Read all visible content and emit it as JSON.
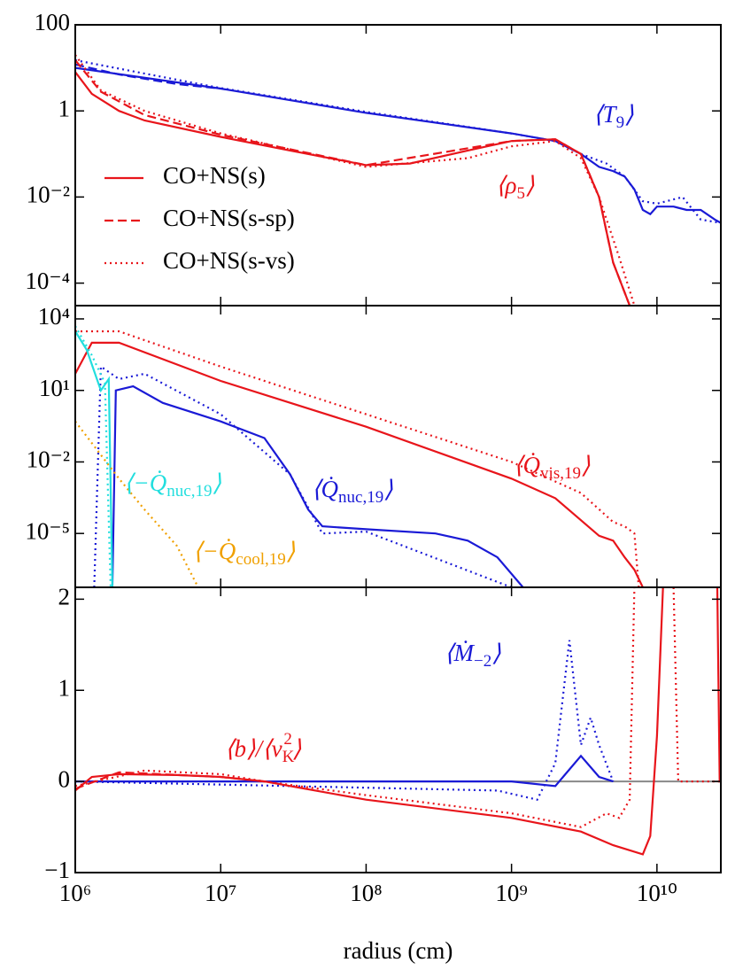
{
  "chart_data": [
    {
      "type": "line",
      "xscale": "log",
      "yscale": "log",
      "xlim": [
        1000000.0,
        27500000000.0
      ],
      "xticks": [
        1000000.0,
        10000000.0,
        100000000.0,
        1000000000.0,
        10000000000.0
      ],
      "ylim": [
        3e-05,
        100
      ],
      "yticks": [
        100,
        1,
        {
          "value": 0.01,
          "label": "10⁻²"
        },
        {
          "value": 0.0001,
          "label": "10⁻⁴"
        }
      ],
      "legend": [
        {
          "name": "CO+NS(s)",
          "color": "#e8151b",
          "linestyle": "solid"
        },
        {
          "name": "CO+NS(s-sp)",
          "color": "#e8151b",
          "linestyle": "dashed"
        },
        {
          "name": "CO+NS(s-vs)",
          "color": "#e8151b",
          "linestyle": "dotted"
        }
      ],
      "annotations": [
        {
          "color": "#1a1ad6",
          "parts": [
            {
              "text": "⟨T"
            },
            {
              "text": "9",
              "shift": "sub"
            },
            {
              "text": "⟩"
            }
          ]
        },
        {
          "color": "#e8151b",
          "parts": [
            {
              "text": "⟨ρ"
            },
            {
              "text": "5",
              "shift": "sub"
            },
            {
              "text": "⟩"
            }
          ]
        }
      ],
      "series": [
        {
          "color": "#1a1ad6",
          "linestyle": "solid",
          "x": [
            1000000.0,
            10000000.0,
            100000000.0,
            1000000000.0,
            2000000000.0,
            3000000000.0,
            4000000000.0,
            5000000000.0,
            6000000000.0,
            7000000000.0,
            8000000000.0,
            9000000000.0,
            10000000000.0,
            13000000000.0,
            16000000000.0,
            20000000000.0,
            25000000000.0,
            27500000000.0
          ],
          "values": [
            10,
            3.3,
            0.9,
            0.3,
            0.2,
            0.1,
            0.05,
            0.04,
            0.03,
            0.015,
            0.005,
            0.004,
            0.006,
            0.006,
            0.005,
            0.005,
            0.003,
            0.0025
          ]
        },
        {
          "color": "#1a1ad6",
          "linestyle": "dashed",
          "x": [
            1000000.0,
            2000000.0,
            5000000.0,
            10000000.0
          ],
          "values": [
            12,
            7,
            4.2,
            3.3
          ]
        },
        {
          "color": "#1a1ad6",
          "linestyle": "dotted",
          "x": [
            1000000.0,
            10000000.0,
            100000000.0,
            1000000000.0,
            2000000000.0,
            3000000000.0,
            4500000000.0,
            6000000000.0,
            8000000000.0,
            10000000000.0,
            15000000000.0,
            20000000000.0,
            27500000000.0
          ],
          "values": [
            15,
            3.4,
            0.95,
            0.3,
            0.2,
            0.1,
            0.06,
            0.03,
            0.008,
            0.007,
            0.01,
            0.003,
            0.0025
          ]
        },
        {
          "color": "#e8151b",
          "linestyle": "solid",
          "x": [
            1000000.0,
            1300000.0,
            2000000.0,
            3000000.0,
            10000000.0,
            30000000.0,
            100000000.0,
            200000000.0,
            500000000.0,
            1000000000.0,
            2000000000.0,
            3000000000.0,
            4000000000.0,
            5000000000.0,
            6500000000.0
          ],
          "values": [
            8,
            2.5,
            1,
            0.6,
            0.25,
            0.12,
            0.055,
            0.06,
            0.12,
            0.2,
            0.22,
            0.1,
            0.01,
            0.0003,
            3e-05
          ]
        },
        {
          "color": "#e8151b",
          "linestyle": "dashed",
          "x": [
            1000000.0,
            1500000.0,
            3000000.0,
            10000000.0,
            100000000.0,
            1000000000.0,
            2000000000.0,
            3000000000.0,
            4000000000.0,
            5000000000.0,
            6500000000.0
          ],
          "values": [
            15,
            2.8,
            0.8,
            0.28,
            0.055,
            0.2,
            0.22,
            0.1,
            0.01,
            0.0003,
            3e-05
          ]
        },
        {
          "color": "#e8151b",
          "linestyle": "dotted",
          "x": [
            1000000.0,
            1500000.0,
            3000000.0,
            10000000.0,
            100000000.0,
            500000000.0,
            1000000000.0,
            2000000000.0,
            3000000000.0,
            4000000000.0,
            5500000000.0,
            7000000000.0
          ],
          "values": [
            20,
            3,
            1,
            0.3,
            0.05,
            0.08,
            0.15,
            0.2,
            0.08,
            0.01,
            0.0004,
            3e-05
          ]
        }
      ]
    },
    {
      "type": "line",
      "xscale": "log",
      "yscale": "log",
      "xlim": [
        1000000.0,
        27500000000.0
      ],
      "xticks": [
        1000000.0,
        10000000.0,
        100000000.0,
        1000000000.0,
        10000000000.0
      ],
      "ylim": [
        5.5e-08,
        36000
      ],
      "yticks": [
        {
          "value": 10000,
          "label": "10⁴"
        },
        {
          "value": 10,
          "label": "10¹"
        },
        {
          "value": 0.01,
          "label": "10⁻²"
        },
        {
          "value": 1e-05,
          "label": "10⁻⁵"
        }
      ],
      "annotations": [
        {
          "color": "#22dede",
          "parts": [
            {
              "text": "⟨−Q̇"
            },
            {
              "text": "nuc,19",
              "shift": "sub"
            },
            {
              "text": "⟩"
            }
          ]
        },
        {
          "color": "#1a1ad6",
          "parts": [
            {
              "text": "⟨Q̇"
            },
            {
              "text": "nuc,19",
              "shift": "sub"
            },
            {
              "text": "⟩"
            }
          ]
        },
        {
          "color": "#e8151b",
          "parts": [
            {
              "text": "⟨Q̇"
            },
            {
              "text": "vis,19",
              "shift": "sub"
            },
            {
              "text": "⟩"
            }
          ]
        },
        {
          "color": "#f0a000",
          "parts": [
            {
              "text": "⟨−Q̇"
            },
            {
              "text": "cool,19",
              "shift": "sub"
            },
            {
              "text": "⟩"
            }
          ]
        }
      ],
      "series": [
        {
          "color": "#e8151b",
          "linestyle": "solid",
          "x": [
            1000000.0,
            1300000.0,
            2000000.0,
            10000000.0,
            100000000.0,
            1000000000.0,
            2000000000.0,
            4000000000.0,
            5000000000.0,
            6000000000.0,
            7000000000.0,
            8000000000.0
          ],
          "values": [
            50,
            1000,
            1000,
            25,
            0.3,
            0.002,
            0.0003,
            8e-06,
            5e-06,
            1e-06,
            3e-07,
            5.5e-08
          ]
        },
        {
          "color": "#e8151b",
          "linestyle": "dotted",
          "x": [
            1000000.0,
            2000000.0,
            10000000.0,
            100000000.0,
            1000000000.0,
            3000000000.0,
            5000000000.0,
            6000000000.0,
            7000000000.0,
            7500000000.0
          ],
          "values": [
            3000,
            3000,
            100,
            1,
            0.01,
            0.0005,
            3e-05,
            2e-05,
            1e-05,
            5.5e-08
          ]
        },
        {
          "color": "#1a1ad6",
          "linestyle": "solid",
          "x": [
            1800000.0,
            1900000.0,
            2500000.0,
            4000000.0,
            10000000.0,
            20000000.0,
            30000000.0,
            40000000.0,
            50000000.0,
            100000000.0,
            300000000.0,
            500000000.0,
            800000000.0,
            1200000000.0
          ],
          "values": [
            5.5e-08,
            10,
            15,
            3,
            0.5,
            0.1,
            0.003,
            0.0001,
            2e-05,
            1.5e-05,
            1e-05,
            5e-06,
            1e-06,
            5.5e-08
          ]
        },
        {
          "color": "#1a1ad6",
          "linestyle": "dotted",
          "x": [
            1350000.0,
            1500000.0,
            2000000.0,
            3000000.0,
            10000000.0,
            30000000.0,
            50000000.0,
            100000000.0,
            1000000000.0
          ],
          "values": [
            5.5e-08,
            100,
            30,
            50,
            1,
            0.003,
            1e-05,
            1.2e-05,
            5.5e-08
          ]
        },
        {
          "color": "#22dede",
          "linestyle": "solid",
          "x": [
            1000000.0,
            1200000.0,
            1500000.0,
            1700000.0,
            1800000.0
          ],
          "values": [
            3000,
            500,
            10,
            30,
            5.5e-08
          ]
        },
        {
          "color": "#22dede",
          "linestyle": "dotted",
          "x": [
            1000000.0,
            1300000.0,
            1600000.0,
            1750000.0
          ],
          "values": [
            5000,
            300,
            20,
            5.5e-08
          ]
        },
        {
          "color": "#f0a000",
          "linestyle": "dotted",
          "x": [
            1000000.0,
            2000000.0,
            3000000.0,
            5000000.0,
            7000000.0
          ],
          "values": [
            0.5,
            0.002,
            0.0001,
            3e-06,
            5.5e-08
          ]
        }
      ]
    },
    {
      "type": "line",
      "xscale": "log",
      "xlim": [
        1000000.0,
        27500000000.0
      ],
      "xticks": [
        {
          "value": 1000000.0,
          "label": "10⁶"
        },
        {
          "value": 10000000.0,
          "label": "10⁷"
        },
        {
          "value": 100000000.0,
          "label": "10⁸"
        },
        {
          "value": 1000000000.0,
          "label": "10⁹"
        },
        {
          "value": 10000000000.0,
          "label": "10¹⁰"
        }
      ],
      "xlabel": "radius (cm)",
      "ylim": [
        -1,
        2.13
      ],
      "yticks": [
        2,
        1,
        0,
        {
          "value": -1,
          "label": "−1"
        }
      ],
      "reference_line": {
        "value": 0,
        "color": "#888888"
      },
      "annotations": [
        {
          "color": "#1a1ad6",
          "parts": [
            {
              "text": "⟨Ṁ"
            },
            {
              "text": "−2",
              "shift": "sub"
            },
            {
              "text": "⟩"
            }
          ]
        },
        {
          "color": "#e8151b",
          "parts": [
            {
              "text": "⟨b⟩/⟨v"
            },
            {
              "text": "K",
              "shift": "sub"
            },
            {
              "text": "2",
              "shift": "sup"
            },
            {
              "text": "⟩"
            }
          ]
        }
      ],
      "series": [
        {
          "color": "#1a1ad6",
          "linestyle": "solid",
          "x": [
            1000000.0,
            1000000000.0,
            2000000000.0,
            3000000000.0,
            4000000000.0,
            5000000000.0
          ],
          "values": [
            0,
            0,
            -0.05,
            0.28,
            0.05,
            0
          ]
        },
        {
          "color": "#1a1ad6",
          "linestyle": "dotted",
          "x": [
            1000000.0,
            800000000.0,
            1500000000.0,
            2000000000.0,
            2500000000.0,
            3000000000.0,
            3500000000.0,
            4000000000.0,
            5000000000.0
          ],
          "values": [
            0,
            -0.1,
            -0.2,
            0.2,
            1.55,
            0.4,
            0.7,
            0.4,
            0
          ]
        },
        {
          "color": "#e8151b",
          "linestyle": "solid",
          "x": [
            1000000.0,
            1300000.0,
            2000000.0,
            5000000.0,
            10000000.0,
            20000000.0,
            100000000.0,
            1000000000.0,
            3000000000.0,
            5000000000.0,
            8000000000.0,
            9000000000.0,
            10000000000.0,
            11000000000.0,
            20000000000.0,
            26000000000.0,
            27000000000.0,
            27500000000.0
          ],
          "values": [
            -0.1,
            0.05,
            0.08,
            0.07,
            0.05,
            0,
            -0.2,
            -0.4,
            -0.55,
            -0.7,
            -0.8,
            -0.6,
            0.5,
            2.13,
            null,
            2.13,
            0,
            0
          ]
        },
        {
          "color": "#e8151b",
          "linestyle": "dashed",
          "x": [
            1000000.0,
            2000000.0,
            10000000.0,
            20000000.0
          ],
          "values": [
            -0.08,
            0.1,
            0.05,
            0
          ]
        },
        {
          "color": "#e8151b",
          "linestyle": "dotted",
          "x": [
            1000000.0,
            3000000.0,
            10000000.0,
            20000000.0,
            100000000.0,
            1000000000.0,
            3000000000.0,
            4500000000.0,
            5500000000.0,
            6500000000.0,
            7000000000.0,
            10000000000.0,
            13000000000.0,
            14000000000.0,
            27500000000.0
          ],
          "values": [
            -0.05,
            0.12,
            0.08,
            0,
            -0.15,
            -0.35,
            -0.5,
            -0.35,
            -0.4,
            -0.2,
            2.13,
            null,
            2.13,
            0,
            0
          ]
        }
      ]
    }
  ]
}
